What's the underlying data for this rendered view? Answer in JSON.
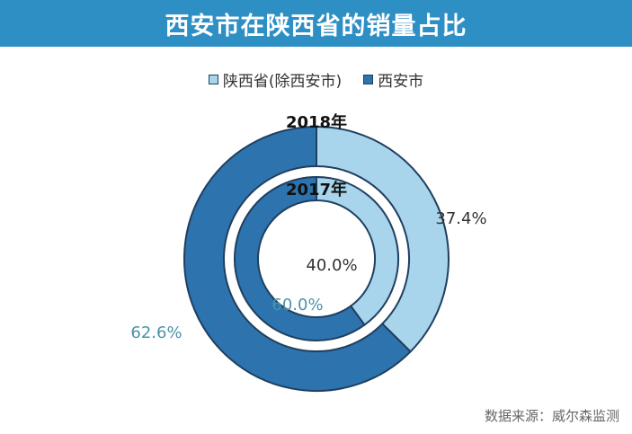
{
  "title": "西安市在陕西省的销量占比",
  "source": "数据来源：威尔森监测",
  "colors": {
    "title_bg": "#2e8fc4",
    "light": "#a8d5ec",
    "dark": "#2d73ad",
    "stroke": "#1f3f60",
    "label_dark": "#333333",
    "label_teal": "#4a93a8"
  },
  "chart_data": {
    "type": "pie",
    "subtype": "nested-donut",
    "title": "西安市在陕西省的销量占比",
    "legend": {
      "position": "top",
      "entries": [
        "陕西省(除西安市)",
        "西安市"
      ]
    },
    "categories": [
      "陕西省(除西安市)",
      "西安市"
    ],
    "rings": [
      {
        "name": "2018年",
        "ring": "outer",
        "values": [
          37.4,
          62.6
        ],
        "labels": [
          "37.4%",
          "62.6%"
        ]
      },
      {
        "name": "2017年",
        "ring": "inner",
        "values": [
          40.0,
          60.0
        ],
        "labels": [
          "40.0%",
          "60.0%"
        ]
      }
    ]
  }
}
